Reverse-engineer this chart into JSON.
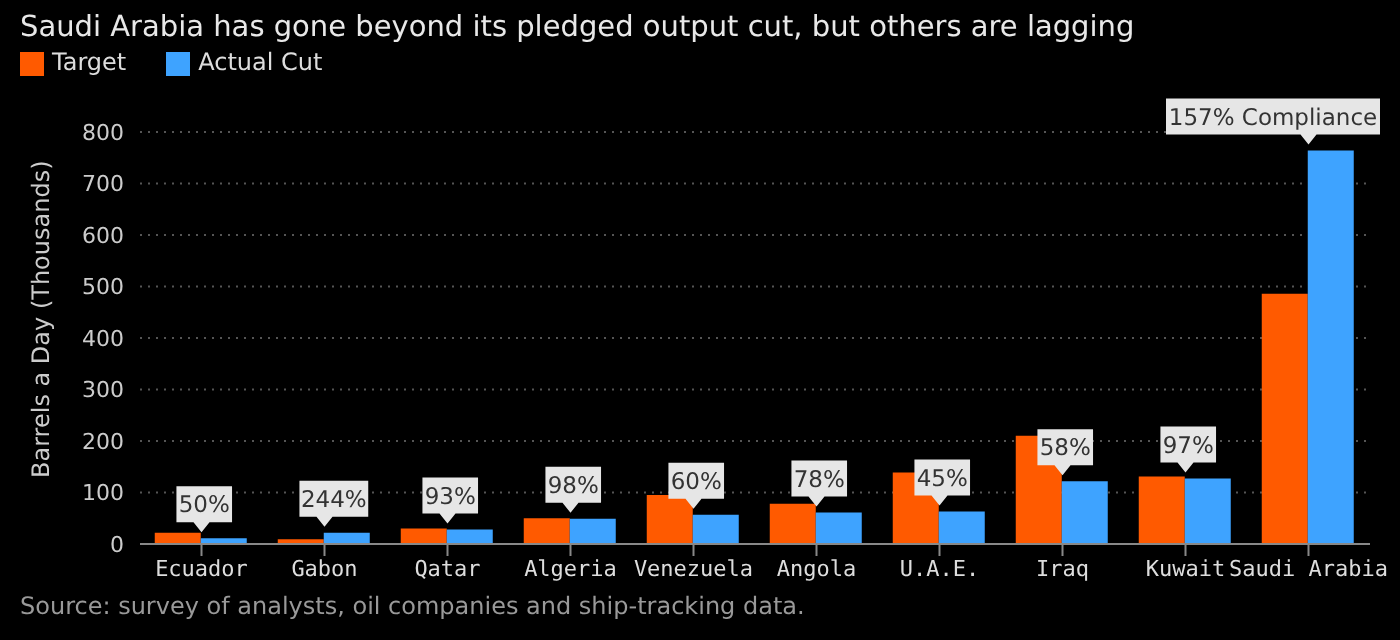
{
  "chart_data": {
    "type": "bar",
    "title": "Saudi Arabia has gone beyond its pledged output cut, but others are lagging",
    "ylabel": "Barrels a Day (Thousands)",
    "categories": [
      "Ecuador",
      "Gabon",
      "Qatar",
      "Algeria",
      "Venezuela",
      "Angola",
      "U.A.E.",
      "Iraq",
      "Kuwait",
      "Saudi Arabia"
    ],
    "series": [
      {
        "name": "Target",
        "color": "#ff5a00",
        "values": [
          22,
          9,
          30,
          50,
          95,
          78,
          139,
          210,
          131,
          486
        ]
      },
      {
        "name": "Actual Cut",
        "color": "#3ea3ff",
        "values": [
          11,
          22,
          28,
          49,
          57,
          61,
          63,
          122,
          127,
          764
        ]
      }
    ],
    "ylim": [
      0,
      800
    ],
    "yticks": [
      0,
      100,
      200,
      300,
      400,
      500,
      600,
      700,
      800
    ],
    "grid": "y",
    "legend": "top left",
    "annotations": [
      {
        "text": "50%",
        "x": "Ecuador",
        "y": 11
      },
      {
        "text": "244%",
        "x": "Gabon",
        "y": 22
      },
      {
        "text": "93%",
        "x": "Qatar",
        "y": 28
      },
      {
        "text": "98%",
        "x": "Algeria",
        "y": 49
      },
      {
        "text": "60%",
        "x": "Venezuela",
        "y": 57
      },
      {
        "text": "78%",
        "x": "Angola",
        "y": 61
      },
      {
        "text": "45%",
        "x": "U.A.E.",
        "y": 63
      },
      {
        "text": "58%",
        "x": "Iraq",
        "y": 122
      },
      {
        "text": "97%",
        "x": "Kuwait",
        "y": 127
      },
      {
        "text": "157% Compliance",
        "x": "Saudi Arabia",
        "y": 764
      },
      "Source: survey of analysts, oil companies and ship-tracking data."
    ]
  }
}
